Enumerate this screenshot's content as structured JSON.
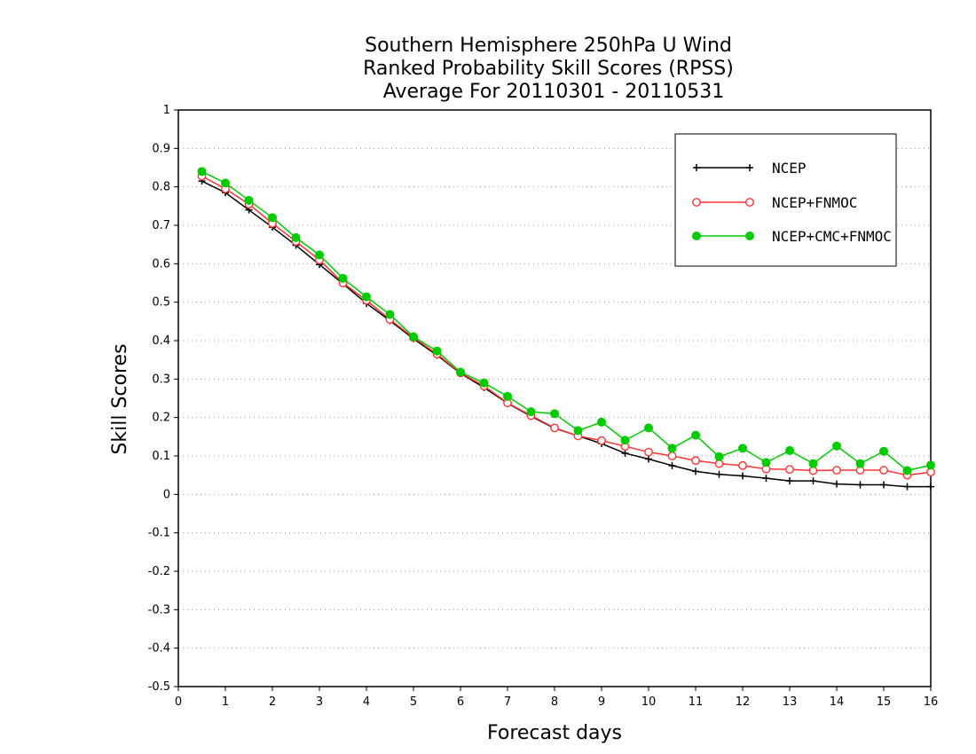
{
  "chart_data": {
    "type": "line",
    "title": [
      "Southern Hemisphere 250hPa U Wind",
      "Ranked Probability Skill Scores (RPSS)",
      "Average For 20110301 - 20110531"
    ],
    "xlabel": "Forecast days",
    "ylabel": "Skill Scores",
    "xlim": [
      0,
      16
    ],
    "ylim": [
      -0.5,
      1
    ],
    "xticks": [
      0,
      1,
      2,
      3,
      4,
      5,
      6,
      7,
      8,
      9,
      10,
      11,
      12,
      13,
      14,
      15,
      16
    ],
    "yticks": [
      -0.5,
      -0.4,
      -0.3,
      -0.2,
      -0.1,
      0,
      0.1,
      0.2,
      0.3,
      0.4,
      0.5,
      0.6,
      0.7,
      0.8,
      0.9,
      1
    ],
    "ytick_labels": [
      "-0.5",
      "-0.4",
      "-0.3",
      "-0.2",
      "-0.1",
      "0",
      "0.1",
      "0.2",
      "0.3",
      "0.4",
      "0.5",
      "0.6",
      "0.7",
      "0.8",
      "0.9",
      "1"
    ],
    "grid": "horizontal dotted",
    "legend_position": "top-right",
    "x": [
      0.5,
      1,
      1.5,
      2,
      2.5,
      3,
      3.5,
      4,
      4.5,
      5,
      5.5,
      6,
      6.5,
      7,
      7.5,
      8,
      8.5,
      9,
      9.5,
      10,
      10.5,
      11,
      11.5,
      12,
      12.5,
      13,
      13.5,
      14,
      14.5,
      15,
      15.5,
      16
    ],
    "series": [
      {
        "name": "NCEP",
        "color": "#000000",
        "marker": "plus",
        "values": [
          0.815,
          0.785,
          0.74,
          0.695,
          0.648,
          0.598,
          0.548,
          0.497,
          0.452,
          0.405,
          0.362,
          0.315,
          0.278,
          0.237,
          0.203,
          0.172,
          0.152,
          0.132,
          0.107,
          0.092,
          0.075,
          0.06,
          0.052,
          0.048,
          0.042,
          0.035,
          0.035,
          0.027,
          0.025,
          0.025,
          0.02,
          0.02
        ]
      },
      {
        "name": "NCEP+FNMOC",
        "color": "#ff3333",
        "marker": "open-circle",
        "values": [
          0.828,
          0.795,
          0.755,
          0.705,
          0.658,
          0.61,
          0.55,
          0.505,
          0.455,
          0.408,
          0.365,
          0.316,
          0.282,
          0.238,
          0.205,
          0.173,
          0.152,
          0.14,
          0.125,
          0.11,
          0.1,
          0.088,
          0.08,
          0.075,
          0.066,
          0.065,
          0.062,
          0.063,
          0.063,
          0.063,
          0.05,
          0.058
        ]
      },
      {
        "name": "NCEP+CMC+FNMOC",
        "color": "#00cc00",
        "marker": "filled-circle",
        "values": [
          0.84,
          0.81,
          0.765,
          0.72,
          0.668,
          0.623,
          0.562,
          0.514,
          0.468,
          0.41,
          0.373,
          0.318,
          0.29,
          0.255,
          0.215,
          0.21,
          0.166,
          0.188,
          0.141,
          0.173,
          0.12,
          0.154,
          0.098,
          0.12,
          0.083,
          0.114,
          0.08,
          0.126,
          0.08,
          0.112,
          0.062,
          0.076
        ]
      }
    ]
  }
}
